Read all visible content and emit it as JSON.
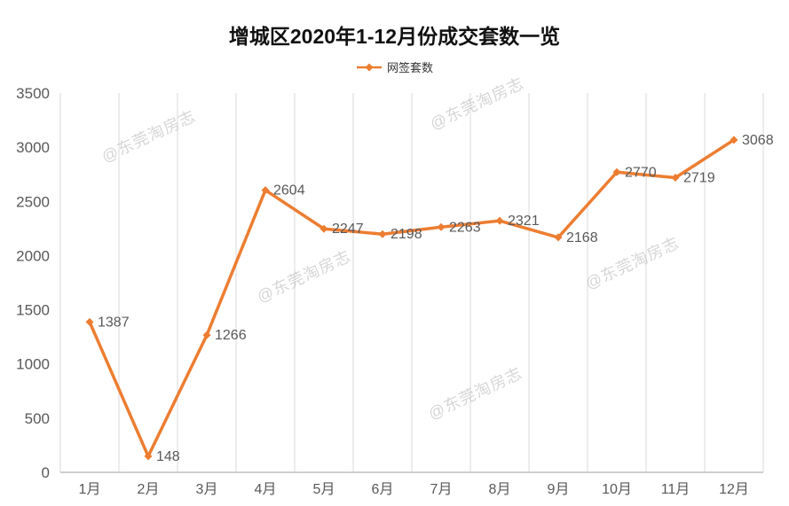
{
  "title": "增城区2020年1-12月份成交套数一览",
  "legend": {
    "label": "网签套数"
  },
  "watermark": {
    "text": "@东莞淘房志"
  },
  "colors": {
    "line": "#ED7D31",
    "label": "#595959",
    "grid": "#D9D9D9",
    "axis": "#BFBFBF",
    "title": "#111111",
    "watermark": "#B4B4B4"
  },
  "chart_data": {
    "type": "line",
    "title": "增城区2020年1-12月份成交套数一览",
    "categories": [
      "1月",
      "2月",
      "3月",
      "4月",
      "5月",
      "6月",
      "7月",
      "8月",
      "9月",
      "10月",
      "11月",
      "12月"
    ],
    "series": [
      {
        "name": "网签套数",
        "values": [
          1387,
          148,
          1266,
          2604,
          2247,
          2198,
          2263,
          2321,
          2168,
          2770,
          2719,
          3068
        ]
      }
    ],
    "xlabel": "",
    "ylabel": "",
    "ylim": [
      0,
      3500
    ],
    "ytick_step": 500,
    "grid": "vertical",
    "legend_position": "top",
    "data_labels": true
  }
}
